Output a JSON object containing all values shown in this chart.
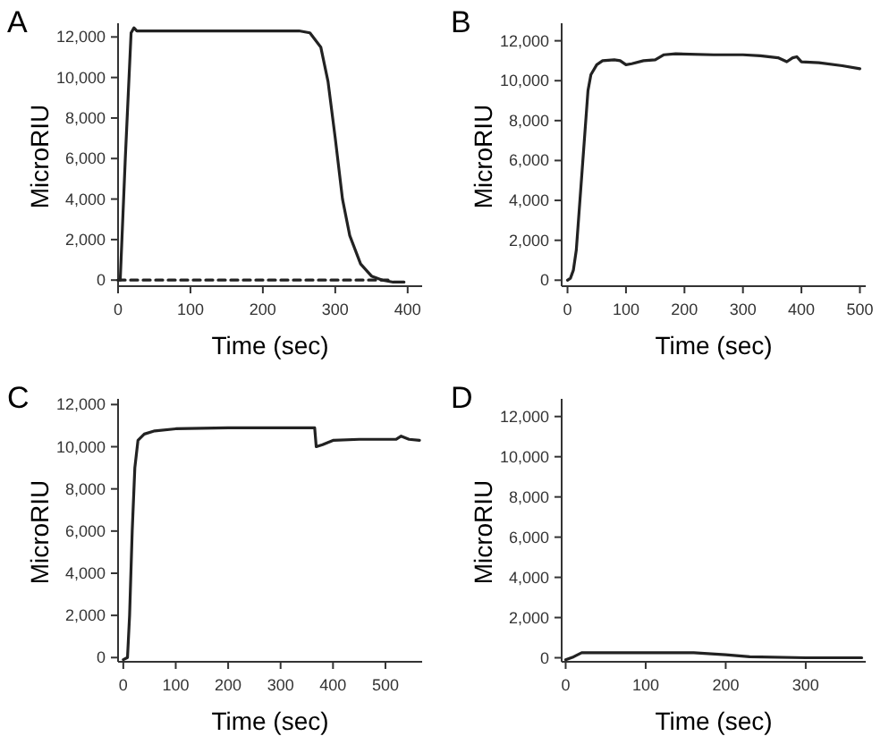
{
  "chart_data": [
    {
      "type": "line",
      "title": "A",
      "xlabel": "Time (sec)",
      "ylabel": "MicroRIU",
      "xlim": [
        0,
        420
      ],
      "ylim": [
        -300,
        12500
      ],
      "xticks": [
        0,
        100,
        200,
        300,
        400
      ],
      "yticks": [
        {
          "value": 0,
          "label": "0"
        },
        {
          "value": 2000,
          "label": "2,000"
        },
        {
          "value": 4000,
          "label": "4,000"
        },
        {
          "value": 6000,
          "label": "6,000"
        },
        {
          "value": 8000,
          "label": "8,000"
        },
        {
          "value": 10000,
          "label": "10,000"
        },
        {
          "value": 12000,
          "label": "12,000"
        }
      ],
      "grid": false,
      "marker": "none",
      "series": [
        {
          "color": "#222222",
          "line_style": "solid",
          "x": [
            0,
            3,
            10,
            18,
            22,
            26,
            250,
            265,
            280,
            290,
            300,
            310,
            320,
            335,
            350,
            365,
            380,
            395
          ],
          "values": [
            0,
            0,
            6000,
            12200,
            12450,
            12300,
            12300,
            12200,
            11500,
            9800,
            7000,
            4000,
            2200,
            800,
            200,
            0,
            -100,
            -100
          ]
        },
        {
          "color": "#222222",
          "line_style": "dashed",
          "x": [
            0,
            380
          ],
          "values": [
            0,
            0
          ]
        }
      ]
    },
    {
      "type": "line",
      "title": "B",
      "xlabel": "Time (sec)",
      "ylabel": "MicroRIU",
      "xlim": [
        -10,
        510
      ],
      "ylim": [
        -300,
        12700
      ],
      "xticks": [
        0,
        100,
        200,
        300,
        400,
        500
      ],
      "yticks": [
        {
          "value": 0,
          "label": "0"
        },
        {
          "value": 2000,
          "label": "2,000"
        },
        {
          "value": 4000,
          "label": "4,000"
        },
        {
          "value": 6000,
          "label": "6,000"
        },
        {
          "value": 8000,
          "label": "8,000"
        },
        {
          "value": 10000,
          "label": "10,000"
        },
        {
          "value": 12000,
          "label": "12,000"
        }
      ],
      "grid": false,
      "marker": "none",
      "series": [
        {
          "color": "#222222",
          "line_style": "solid",
          "x": [
            0,
            5,
            10,
            15,
            20,
            25,
            30,
            35,
            40,
            50,
            60,
            80,
            90,
            100,
            110,
            130,
            150,
            165,
            185,
            250,
            300,
            330,
            360,
            375,
            385,
            392,
            400,
            430,
            470,
            500
          ],
          "values": [
            0,
            100,
            500,
            1500,
            3500,
            5500,
            7500,
            9500,
            10300,
            10800,
            11000,
            11050,
            11000,
            10800,
            10850,
            11000,
            11050,
            11300,
            11350,
            11300,
            11300,
            11250,
            11150,
            10950,
            11150,
            11200,
            10950,
            10900,
            10750,
            10600
          ]
        }
      ]
    },
    {
      "type": "line",
      "title": "C",
      "xlabel": "Time (sec)",
      "ylabel": "MicroRIU",
      "xlim": [
        -10,
        570
      ],
      "ylim": [
        -200,
        12100
      ],
      "xticks": [
        0,
        100,
        200,
        300,
        400,
        500
      ],
      "yticks": [
        {
          "value": 0,
          "label": "0"
        },
        {
          "value": 2000,
          "label": "2,000"
        },
        {
          "value": 4000,
          "label": "4,000"
        },
        {
          "value": 6000,
          "label": "6,000"
        },
        {
          "value": 8000,
          "label": "8,000"
        },
        {
          "value": 10000,
          "label": "10,000"
        },
        {
          "value": 12000,
          "label": "12,000"
        }
      ],
      "grid": false,
      "marker": "none",
      "series": [
        {
          "color": "#222222",
          "line_style": "solid",
          "x": [
            0,
            8,
            12,
            17,
            22,
            28,
            40,
            60,
            100,
            200,
            300,
            365,
            368,
            380,
            400,
            450,
            520,
            530,
            545,
            565
          ],
          "values": [
            -100,
            0,
            2000,
            6000,
            9000,
            10300,
            10600,
            10750,
            10850,
            10900,
            10900,
            10900,
            10000,
            10100,
            10300,
            10350,
            10350,
            10500,
            10350,
            10300
          ]
        }
      ]
    },
    {
      "type": "line",
      "title": "D",
      "xlabel": "Time (sec)",
      "ylabel": "MicroRIU",
      "xlim": [
        -5,
        375
      ],
      "ylim": [
        -200,
        12700
      ],
      "xticks": [
        0,
        100,
        200,
        300
      ],
      "yticks": [
        {
          "value": 0,
          "label": "0"
        },
        {
          "value": 2000,
          "label": "2,000"
        },
        {
          "value": 4000,
          "label": "4,000"
        },
        {
          "value": 6000,
          "label": "6,000"
        },
        {
          "value": 8000,
          "label": "8,000"
        },
        {
          "value": 10000,
          "label": "10,000"
        },
        {
          "value": 12000,
          "label": "12,000"
        }
      ],
      "grid": false,
      "marker": "none",
      "series": [
        {
          "color": "#222222",
          "line_style": "solid",
          "x": [
            0,
            10,
            20,
            50,
            100,
            160,
            200,
            230,
            300,
            370
          ],
          "values": [
            -100,
            50,
            250,
            250,
            250,
            250,
            150,
            50,
            0,
            0
          ]
        }
      ]
    }
  ]
}
